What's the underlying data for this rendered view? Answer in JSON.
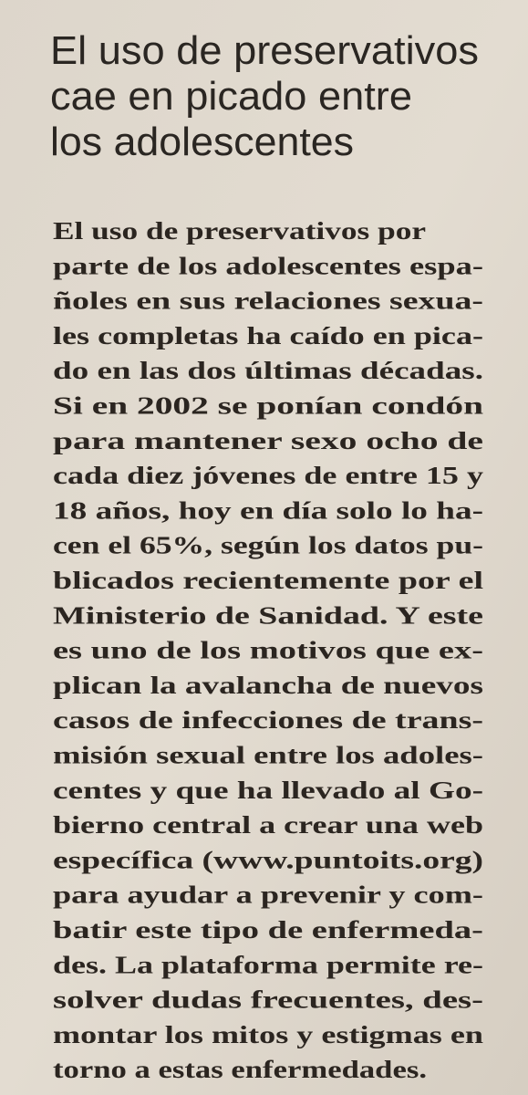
{
  "headline": {
    "lines": [
      "El uso de preservativos",
      "cae en picado entre",
      "los adolescentes"
    ]
  },
  "body": {
    "lines": [
      "El uso de preservativos por",
      "parte de los adolescentes espa-",
      "ñoles en sus relaciones sexua-",
      "les completas ha caído en pica-",
      "do en las dos últimas décadas.",
      "Si en 2002 se ponían condón",
      "para mantener sexo ocho de",
      "cada diez jóvenes de entre 15 y",
      "18 años, hoy en día solo lo ha-",
      "cen el 65%, según los datos pu-",
      "blicados recientemente por el",
      "Ministerio de Sanidad. Y este",
      "es uno de los motivos que ex-",
      "plican la avalancha de nuevos",
      "casos de infecciones de trans-",
      "misión sexual entre los adoles-",
      "centes y que ha llevado al Go-",
      "bierno central a crear una web",
      "específica (www.puntoits.org)",
      "para ayudar a prevenir y com-",
      "batir este tipo de enfermeda-",
      "des. La plataforma permite re-",
      "solver dudas frecuentes, des-",
      "montar los mitos y estigmas en",
      "torno a estas enfermedades."
    ]
  }
}
